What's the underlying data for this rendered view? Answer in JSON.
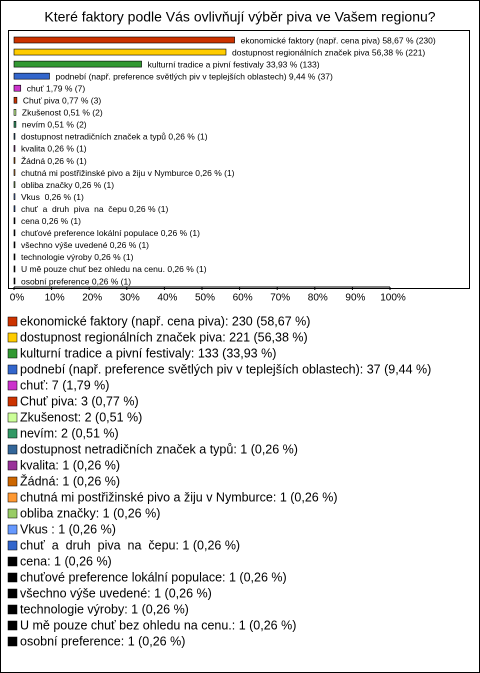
{
  "chart_data": {
    "type": "bar",
    "orientation": "horizontal",
    "title": "Které faktory podle Vás ovlivňují výběr piva ve Vašem regionu?",
    "categories": [
      "ekonomické faktory (např. cena piva)",
      "dostupnost regionálních značek piva",
      "kulturní tradice a pivní festivaly",
      "podnebí (např. preference světlých piv v teplejších oblastech)",
      "chuť",
      "Chuť piva",
      "Zkušenost",
      "nevím",
      "dostupnost netradičních značek a typů",
      "kvalita",
      "Žádná",
      "chutná mi postřižinské pivo a žiju v Nymburce",
      "obliba značky",
      "Vkus ",
      "chuť  a  druh  piva  na  čepu",
      "cena",
      "chuťové preference lokální populace",
      "všechno výše uvedené",
      "technologie výroby",
      "U mě pouze chuť bez ohledu na cenu.",
      "osobní preference"
    ],
    "values": [
      58.67,
      56.38,
      33.93,
      9.44,
      1.79,
      0.77,
      0.51,
      0.51,
      0.26,
      0.26,
      0.26,
      0.26,
      0.26,
      0.26,
      0.26,
      0.26,
      0.26,
      0.26,
      0.26,
      0.26,
      0.26
    ],
    "value_labels": [
      "ekonomické faktory (např. cena piva) 58,67 % (230)",
      "dostupnost regionálních značek piva 56,38 % (221)",
      "kulturní tradice a pivní festivaly 33,93 % (133)",
      "podnebí (např. preference světlých piv v teplejších oblastech) 9,44 % (37)",
      "chuť 1,79 % (7)",
      "Chuť piva 0,77 % (3)",
      "Zkušenost 0,51 % (2)",
      "nevím 0,51 % (2)",
      "dostupnost netradičních značek a typů 0,26 % (1)",
      "kvalita 0,26 % (1)",
      "Žádná 0,26 % (1)",
      "chutná mi postřižinské pivo a žiju v Nymburce 0,26 % (1)",
      "obliba značky 0,26 % (1)",
      "Vkus  0,26 % (1)",
      "chuť  a  druh  piva  na  čepu 0,26 % (1)",
      "cena 0,26 % (1)",
      "chuťové preference lokální populace 0,26 % (1)",
      "všechno výše uvedené 0,26 % (1)",
      "technologie výroby 0,26 % (1)",
      "U mě pouze chuť bez ohledu na cenu. 0,26 % (1)",
      "osobní preference 0,26 % (1)"
    ],
    "legend_labels": [
      "ekonomické faktory (např. cena piva): 230 (58,67 %)",
      "dostupnost regionálních značek piva: 221 (56,38 %)",
      "kulturní tradice a pivní festivaly: 133 (33,93 %)",
      "podnebí (např. preference světlých piv v teplejších oblastech): 37 (9,44 %)",
      "chuť: 7 (1,79 %)",
      "Chuť piva: 3 (0,77 %)",
      "Zkušenost: 2 (0,51 %)",
      "nevím: 2 (0,51 %)",
      "dostupnost netradičních značek a typů: 1 (0,26 %)",
      "kvalita: 1 (0,26 %)",
      "Žádná: 1 (0,26 %)",
      "chutná mi postřižinské pivo a žiju v Nymburce: 1 (0,26 %)",
      "obliba značky: 1 (0,26 %)",
      "Vkus : 1 (0,26 %)",
      "chuť  a  druh  piva  na  čepu: 1 (0,26 %)",
      "cena: 1 (0,26 %)",
      "chuťové preference lokální populace: 1 (0,26 %)",
      "všechno výše uvedené: 1 (0,26 %)",
      "technologie výroby: 1 (0,26 %)",
      "U mě pouze chuť bez ohledu na cenu.: 1 (0,26 %)",
      "osobní preference: 1 (0,26 %)"
    ],
    "colors": [
      "#cc3300",
      "#ffcc00",
      "#339933",
      "#3366cc",
      "#cc33cc",
      "#cc3300",
      "#ccff99",
      "#339966",
      "#336699",
      "#993399",
      "#cc6600",
      "#ff9933",
      "#99cc66",
      "#6699ff",
      "#3366cc",
      "#000000",
      "#000000",
      "#000000",
      "#000000",
      "#000000",
      "#000000"
    ],
    "xlim": [
      0,
      100
    ],
    "xticks": [
      {
        "value": 0,
        "label": "0%"
      },
      {
        "value": 10,
        "label": "10%"
      },
      {
        "value": 20,
        "label": "20%"
      },
      {
        "value": 30,
        "label": "30%"
      },
      {
        "value": 40,
        "label": "40%"
      },
      {
        "value": 50,
        "label": "50%"
      },
      {
        "value": 60,
        "label": "60%"
      },
      {
        "value": 70,
        "label": "70%"
      },
      {
        "value": 80,
        "label": "80%"
      },
      {
        "value": 90,
        "label": "90%"
      },
      {
        "value": 100,
        "label": "100%"
      }
    ],
    "grid": false
  }
}
